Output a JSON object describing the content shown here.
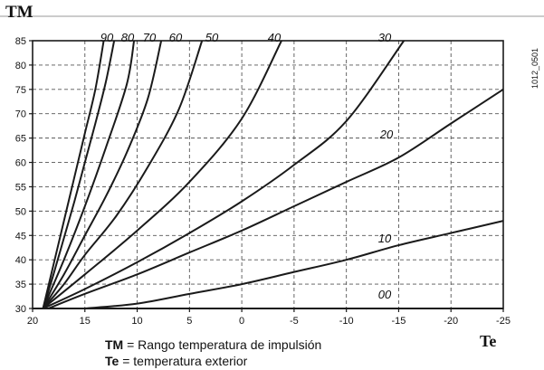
{
  "chart_data": {
    "type": "line",
    "ylabel": "TM",
    "xlabel": "Te",
    "xlim": [
      20,
      -25
    ],
    "ylim": [
      30,
      85
    ],
    "x_ticks": [
      "20",
      "15",
      "10",
      "5",
      "0",
      "-5",
      "-10",
      "-15",
      "-20",
      "-25"
    ],
    "y_ticks": [
      "30",
      "35",
      "40",
      "45",
      "50",
      "55",
      "60",
      "65",
      "70",
      "75",
      "80",
      "85"
    ],
    "grid": true,
    "series": [
      {
        "name": "90",
        "x": [
          19,
          18,
          17,
          16,
          15,
          14,
          13.2
        ],
        "y": [
          30,
          39,
          48,
          57,
          66,
          75,
          85
        ]
      },
      {
        "name": "80",
        "x": [
          19,
          18,
          17,
          16,
          15,
          14,
          13,
          12.2
        ],
        "y": [
          30,
          37,
          44.5,
          52,
          60,
          68,
          76.5,
          85
        ]
      },
      {
        "name": "70",
        "x": [
          19,
          17,
          15,
          13,
          11,
          10.3
        ],
        "y": [
          30,
          40,
          51,
          63,
          76,
          85
        ]
      },
      {
        "name": "60",
        "x": [
          19,
          17,
          15,
          13,
          11,
          9,
          7.7
        ],
        "y": [
          30,
          37,
          45,
          53,
          62,
          73,
          85
        ]
      },
      {
        "name": "50",
        "x": [
          19,
          17,
          15,
          12,
          9,
          6,
          3.8
        ],
        "y": [
          30,
          35,
          41,
          49,
          59,
          71,
          85
        ]
      },
      {
        "name": "40",
        "x": [
          19,
          15,
          10,
          5,
          0,
          -3.8
        ],
        "y": [
          30,
          37,
          46,
          56,
          69,
          85
        ]
      },
      {
        "name": "30",
        "x": [
          19,
          15,
          10,
          5,
          0,
          -5,
          -10,
          -15.5
        ],
        "y": [
          30,
          34,
          39.5,
          45.5,
          52,
          59.5,
          68.5,
          85
        ]
      },
      {
        "name": "20",
        "x": [
          18.5,
          15,
          10,
          5,
          0,
          -5,
          -10,
          -15,
          -20,
          -25
        ],
        "y": [
          30,
          33,
          37,
          41.5,
          46,
          51,
          56,
          61,
          68,
          75
        ]
      },
      {
        "name": "10",
        "x": [
          15,
          10,
          5,
          0,
          -5,
          -10,
          -15,
          -20,
          -25
        ],
        "y": [
          30,
          31,
          33,
          35,
          37.5,
          40,
          43,
          45.5,
          48
        ]
      },
      {
        "name": "00",
        "x": [
          20,
          -25
        ],
        "y": [
          30,
          30
        ]
      }
    ]
  },
  "ytitle": "TM",
  "xtitle": "Te",
  "code": "1012_0501",
  "legend": {
    "tm_key": "TM",
    "tm_text": " = Rango temperatura de impulsión",
    "te_key": "Te",
    "te_text": " = temperatura exterior"
  },
  "colors": {
    "line": "#1a1a1a",
    "grid": "#555555",
    "frame": "#1a1a1a"
  }
}
